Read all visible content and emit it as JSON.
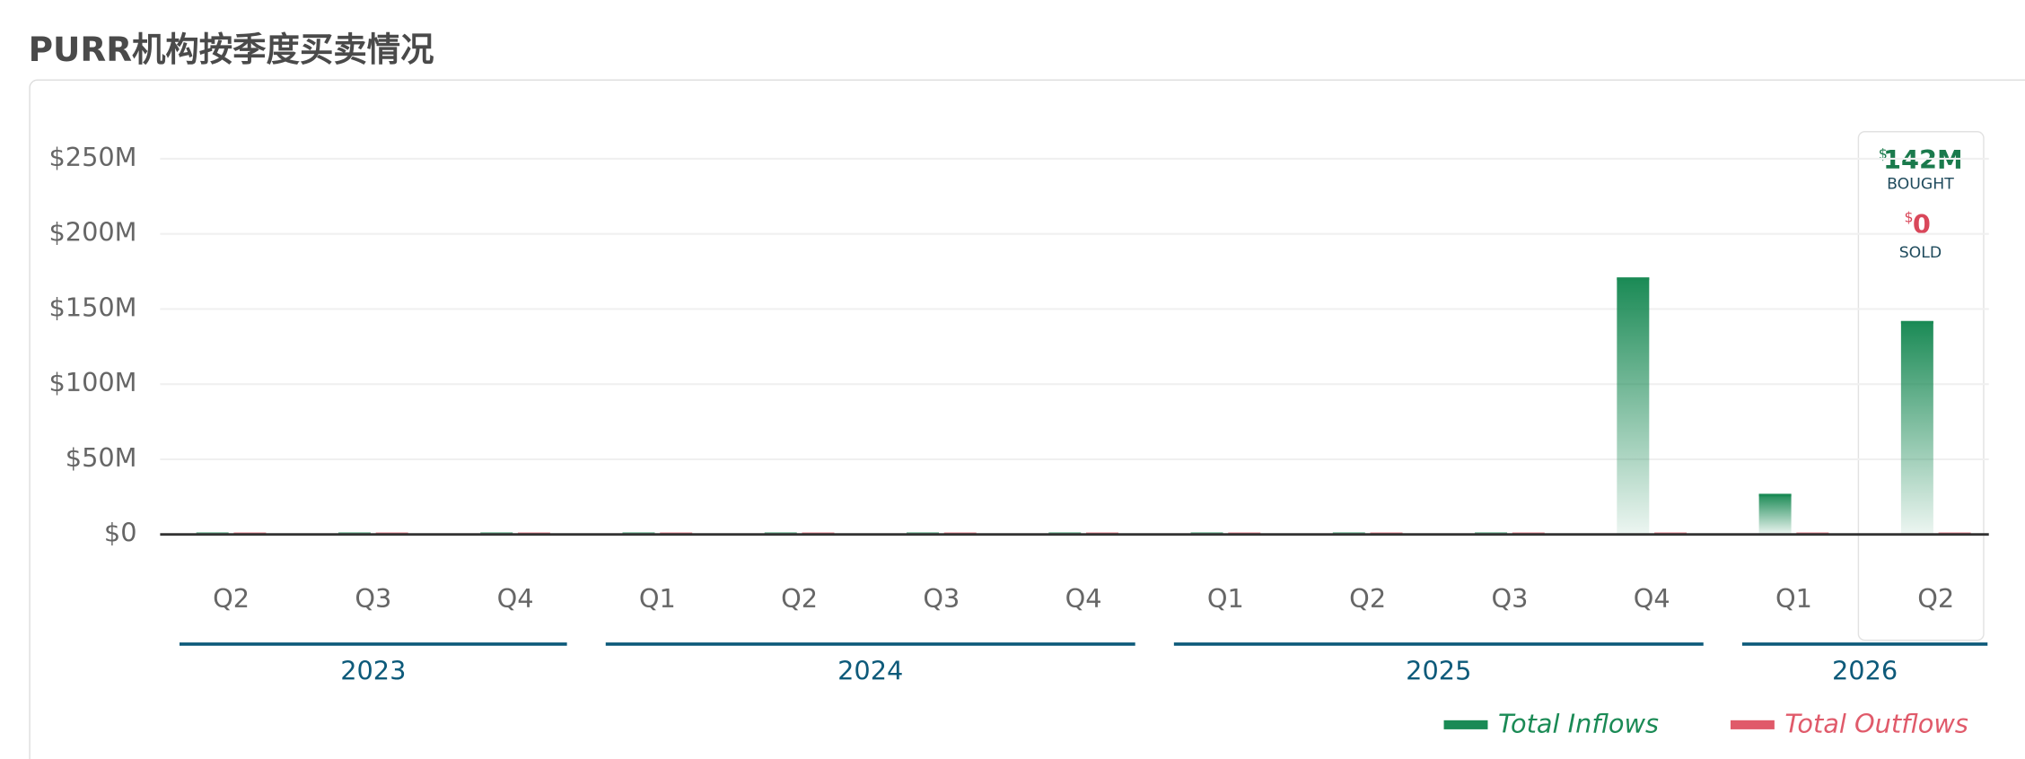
{
  "chart_data": {
    "type": "bar",
    "title": "PURR机构按季度买卖情况",
    "categories": [
      "Q2",
      "Q3",
      "Q4",
      "Q1",
      "Q2",
      "Q3",
      "Q4",
      "Q1",
      "Q2",
      "Q3",
      "Q4",
      "Q1",
      "Q2"
    ],
    "years": [
      "2023",
      "2023",
      "2023",
      "2024",
      "2024",
      "2024",
      "2024",
      "2025",
      "2025",
      "2025",
      "2025",
      "2026",
      "2026"
    ],
    "series": [
      {
        "name": "Total Inflows",
        "color": "#1a8a55",
        "values": [
          0,
          0,
          0,
          0,
          0,
          0,
          0,
          0,
          0,
          0,
          171,
          27,
          142
        ]
      },
      {
        "name": "Total Outflows",
        "color": "#e05a6a",
        "values": [
          0,
          0,
          0,
          0,
          0,
          0,
          0,
          0,
          0,
          0,
          0,
          1,
          0
        ]
      }
    ],
    "ylim": [
      0,
      250
    ],
    "yticks": [
      {
        "value": 0,
        "label": "$0"
      },
      {
        "value": 50,
        "label": "$50M"
      },
      {
        "value": 100,
        "label": "$100M"
      },
      {
        "value": 150,
        "label": "$150M"
      },
      {
        "value": 200,
        "label": "$200M"
      },
      {
        "value": 250,
        "label": "$250M"
      }
    ],
    "grid": true,
    "tooltip": {
      "bought_prefix": "$",
      "bought": "142M",
      "bought_label": "BOUGHT",
      "sold_prefix": "$",
      "sold": "0",
      "sold_label": "SOLD"
    }
  }
}
